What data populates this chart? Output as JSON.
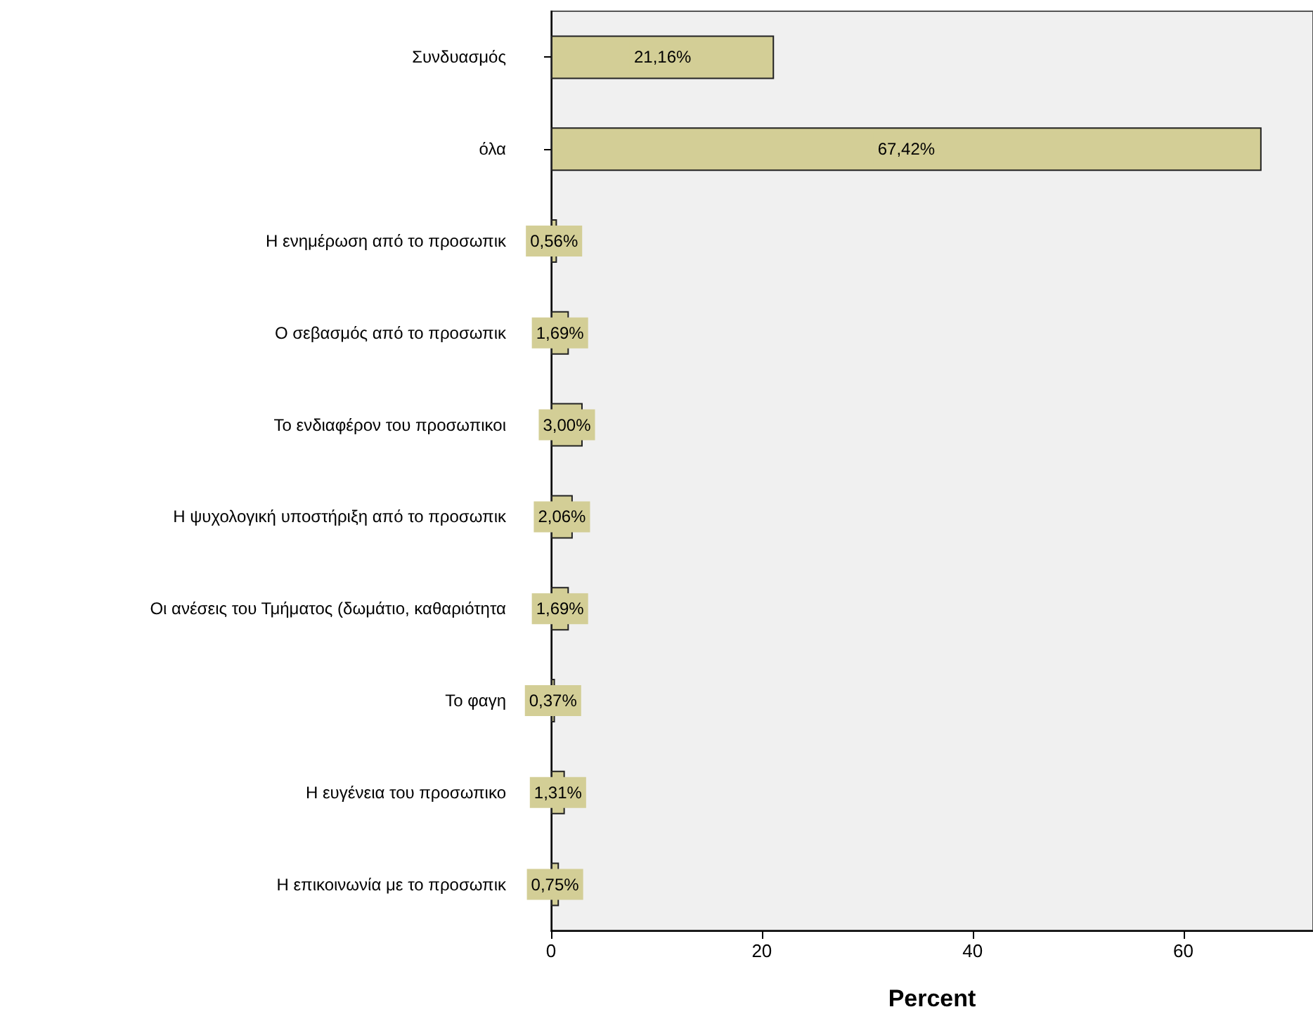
{
  "chart_data": {
    "type": "bar",
    "orientation": "horizontal",
    "xlabel": "Percent",
    "categories": [
      "Συνδυασμός",
      "όλα",
      "Η ενημέρωση από το προσωπικ",
      "Ο σεβασμός από το προσωπικ",
      "Το ενδιαφέρον του προσωπικοι",
      "Η ψυχολογική υποστήριξη από το προσωπικ",
      "Οι ανέσεις του Τμήματος (δωμάτιο, καθαριότητα",
      "Το φαγη",
      "Η ευγένεια του προσωπικο",
      "Η επικοινωνία με το προσωπικ"
    ],
    "values": [
      21.16,
      67.42,
      0.56,
      1.69,
      3.0,
      2.06,
      1.69,
      0.37,
      1.31,
      0.75
    ],
    "value_labels": [
      "21,16%",
      "67,42%",
      "0,56%",
      "1,69%",
      "3,00%",
      "2,06%",
      "1,69%",
      "0,37%",
      "1,31%",
      "0,75%"
    ],
    "color": "#d3ce96",
    "xlim": [
      0,
      72.3
    ],
    "xticks": [
      0,
      20,
      40,
      60
    ],
    "grid": false
  }
}
